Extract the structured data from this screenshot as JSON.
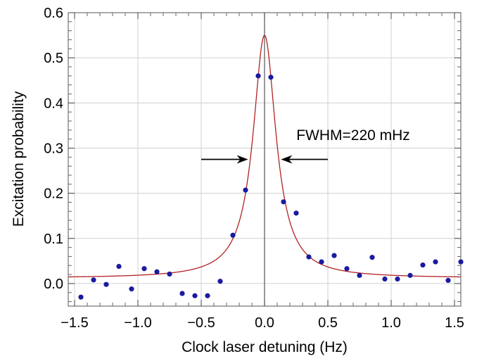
{
  "chart_data": {
    "type": "scatter",
    "xlabel": "Clock laser detuning (Hz)",
    "ylabel": "Excitation probability",
    "xlim": [
      -1.55,
      1.55
    ],
    "ylim": [
      -0.05,
      0.6
    ],
    "x_ticks": [
      -1.5,
      -1.0,
      -0.5,
      0.0,
      0.5,
      1.0,
      1.5
    ],
    "x_tick_labels": [
      "−1.5",
      "−1.0",
      "−0.5",
      "0.0",
      "0.5",
      "1.0",
      "1.5"
    ],
    "y_ticks": [
      0.0,
      0.1,
      0.2,
      0.3,
      0.4,
      0.5,
      0.6
    ],
    "y_tick_labels": [
      "0.0",
      "0.1",
      "0.2",
      "0.3",
      "0.4",
      "0.5",
      "0.6"
    ],
    "grid": true,
    "series": [
      {
        "kind": "points",
        "color": "#1a1aa0",
        "x": [
          -1.45,
          -1.35,
          -1.25,
          -1.15,
          -1.05,
          -0.95,
          -0.85,
          -0.75,
          -0.65,
          -0.55,
          -0.45,
          -0.35,
          -0.25,
          -0.15,
          -0.05,
          0.05,
          0.15,
          0.25,
          0.35,
          0.45,
          0.55,
          0.65,
          0.75,
          0.85,
          0.95,
          1.05,
          1.15,
          1.25,
          1.35,
          1.45,
          1.55
        ],
        "y": [
          -0.03,
          0.008,
          -0.002,
          0.038,
          -0.012,
          0.033,
          0.026,
          0.021,
          -0.022,
          -0.027,
          -0.027,
          0.005,
          0.107,
          0.207,
          0.46,
          0.457,
          0.181,
          0.156,
          0.059,
          0.048,
          0.062,
          0.033,
          0.018,
          0.058,
          0.01,
          0.01,
          0.018,
          0.041,
          0.048,
          0.007,
          0.048
        ]
      },
      {
        "kind": "fit",
        "color": "#b22222",
        "model": "lorentzian",
        "center": 0.0,
        "fwhm": 0.22,
        "peak": 0.55,
        "offset": 0.012
      }
    ],
    "annotations": [
      {
        "text": "FWHM=220 mHz",
        "x": 0.7,
        "y": 0.318
      }
    ],
    "arrows": [
      {
        "y": 0.275,
        "x_tail": -0.5,
        "x_head": -0.13
      },
      {
        "y": 0.275,
        "x_tail": 0.5,
        "x_head": 0.13
      }
    ]
  }
}
